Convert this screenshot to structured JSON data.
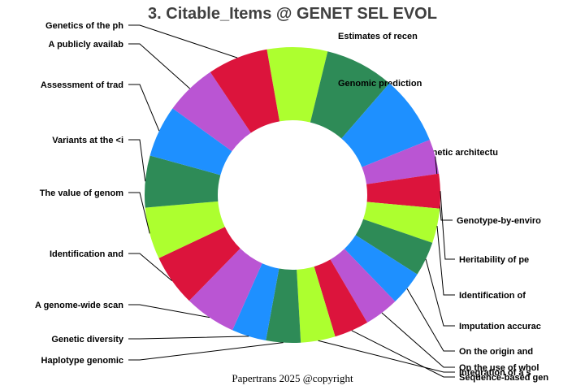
{
  "chart_data": {
    "type": "pie",
    "title": "3. Citable_Items @ GENET SEL EVOL",
    "slices": [
      {
        "label": "Estimates of recen",
        "value": 7,
        "color": "#ADFF2F"
      },
      {
        "label": "Genomic prediction",
        "value": 8,
        "color": "#2E8B57"
      },
      {
        "label": "Genetic architectu",
        "value": 8,
        "color": "#1E90FF"
      },
      {
        "label": "Genotype-by-enviro",
        "value": 4,
        "color": "#BA55D3"
      },
      {
        "label": "Heritability of pe",
        "value": 4,
        "color": "#DC143C"
      },
      {
        "label": "Identification of",
        "value": 4,
        "color": "#ADFF2F"
      },
      {
        "label": "Imputation accurac",
        "value": 4,
        "color": "#2E8B57"
      },
      {
        "label": "On the origin and",
        "value": 4,
        "color": "#1E90FF"
      },
      {
        "label": "On the use of whol",
        "value": 4,
        "color": "#BA55D3"
      },
      {
        "label": "Sequence-based gen",
        "value": 4,
        "color": "#DC143C"
      },
      {
        "label": "Integration of a s",
        "value": 4,
        "color": "#ADFF2F"
      },
      {
        "label": "Haplotype genomic",
        "value": 4,
        "color": "#2E8B57"
      },
      {
        "label": "Genetic diversity",
        "value": 4,
        "color": "#1E90FF"
      },
      {
        "label": "A genome-wide scan",
        "value": 6,
        "color": "#BA55D3"
      },
      {
        "label": "Identification and",
        "value": 6,
        "color": "#DC143C"
      },
      {
        "label": "The value of genom",
        "value": 6,
        "color": "#ADFF2F"
      },
      {
        "label": "Variants at the <i",
        "value": 6,
        "color": "#2E8B57"
      },
      {
        "label": "Assessment of trad",
        "value": 6,
        "color": "#1E90FF"
      },
      {
        "label": "A publicly availab",
        "value": 6,
        "color": "#BA55D3"
      },
      {
        "label": "Genetics of the ph",
        "value": 7,
        "color": "#DC143C"
      }
    ],
    "style": "donut"
  },
  "footer": {
    "copyright": "Papertrans 2025 @copyright"
  }
}
